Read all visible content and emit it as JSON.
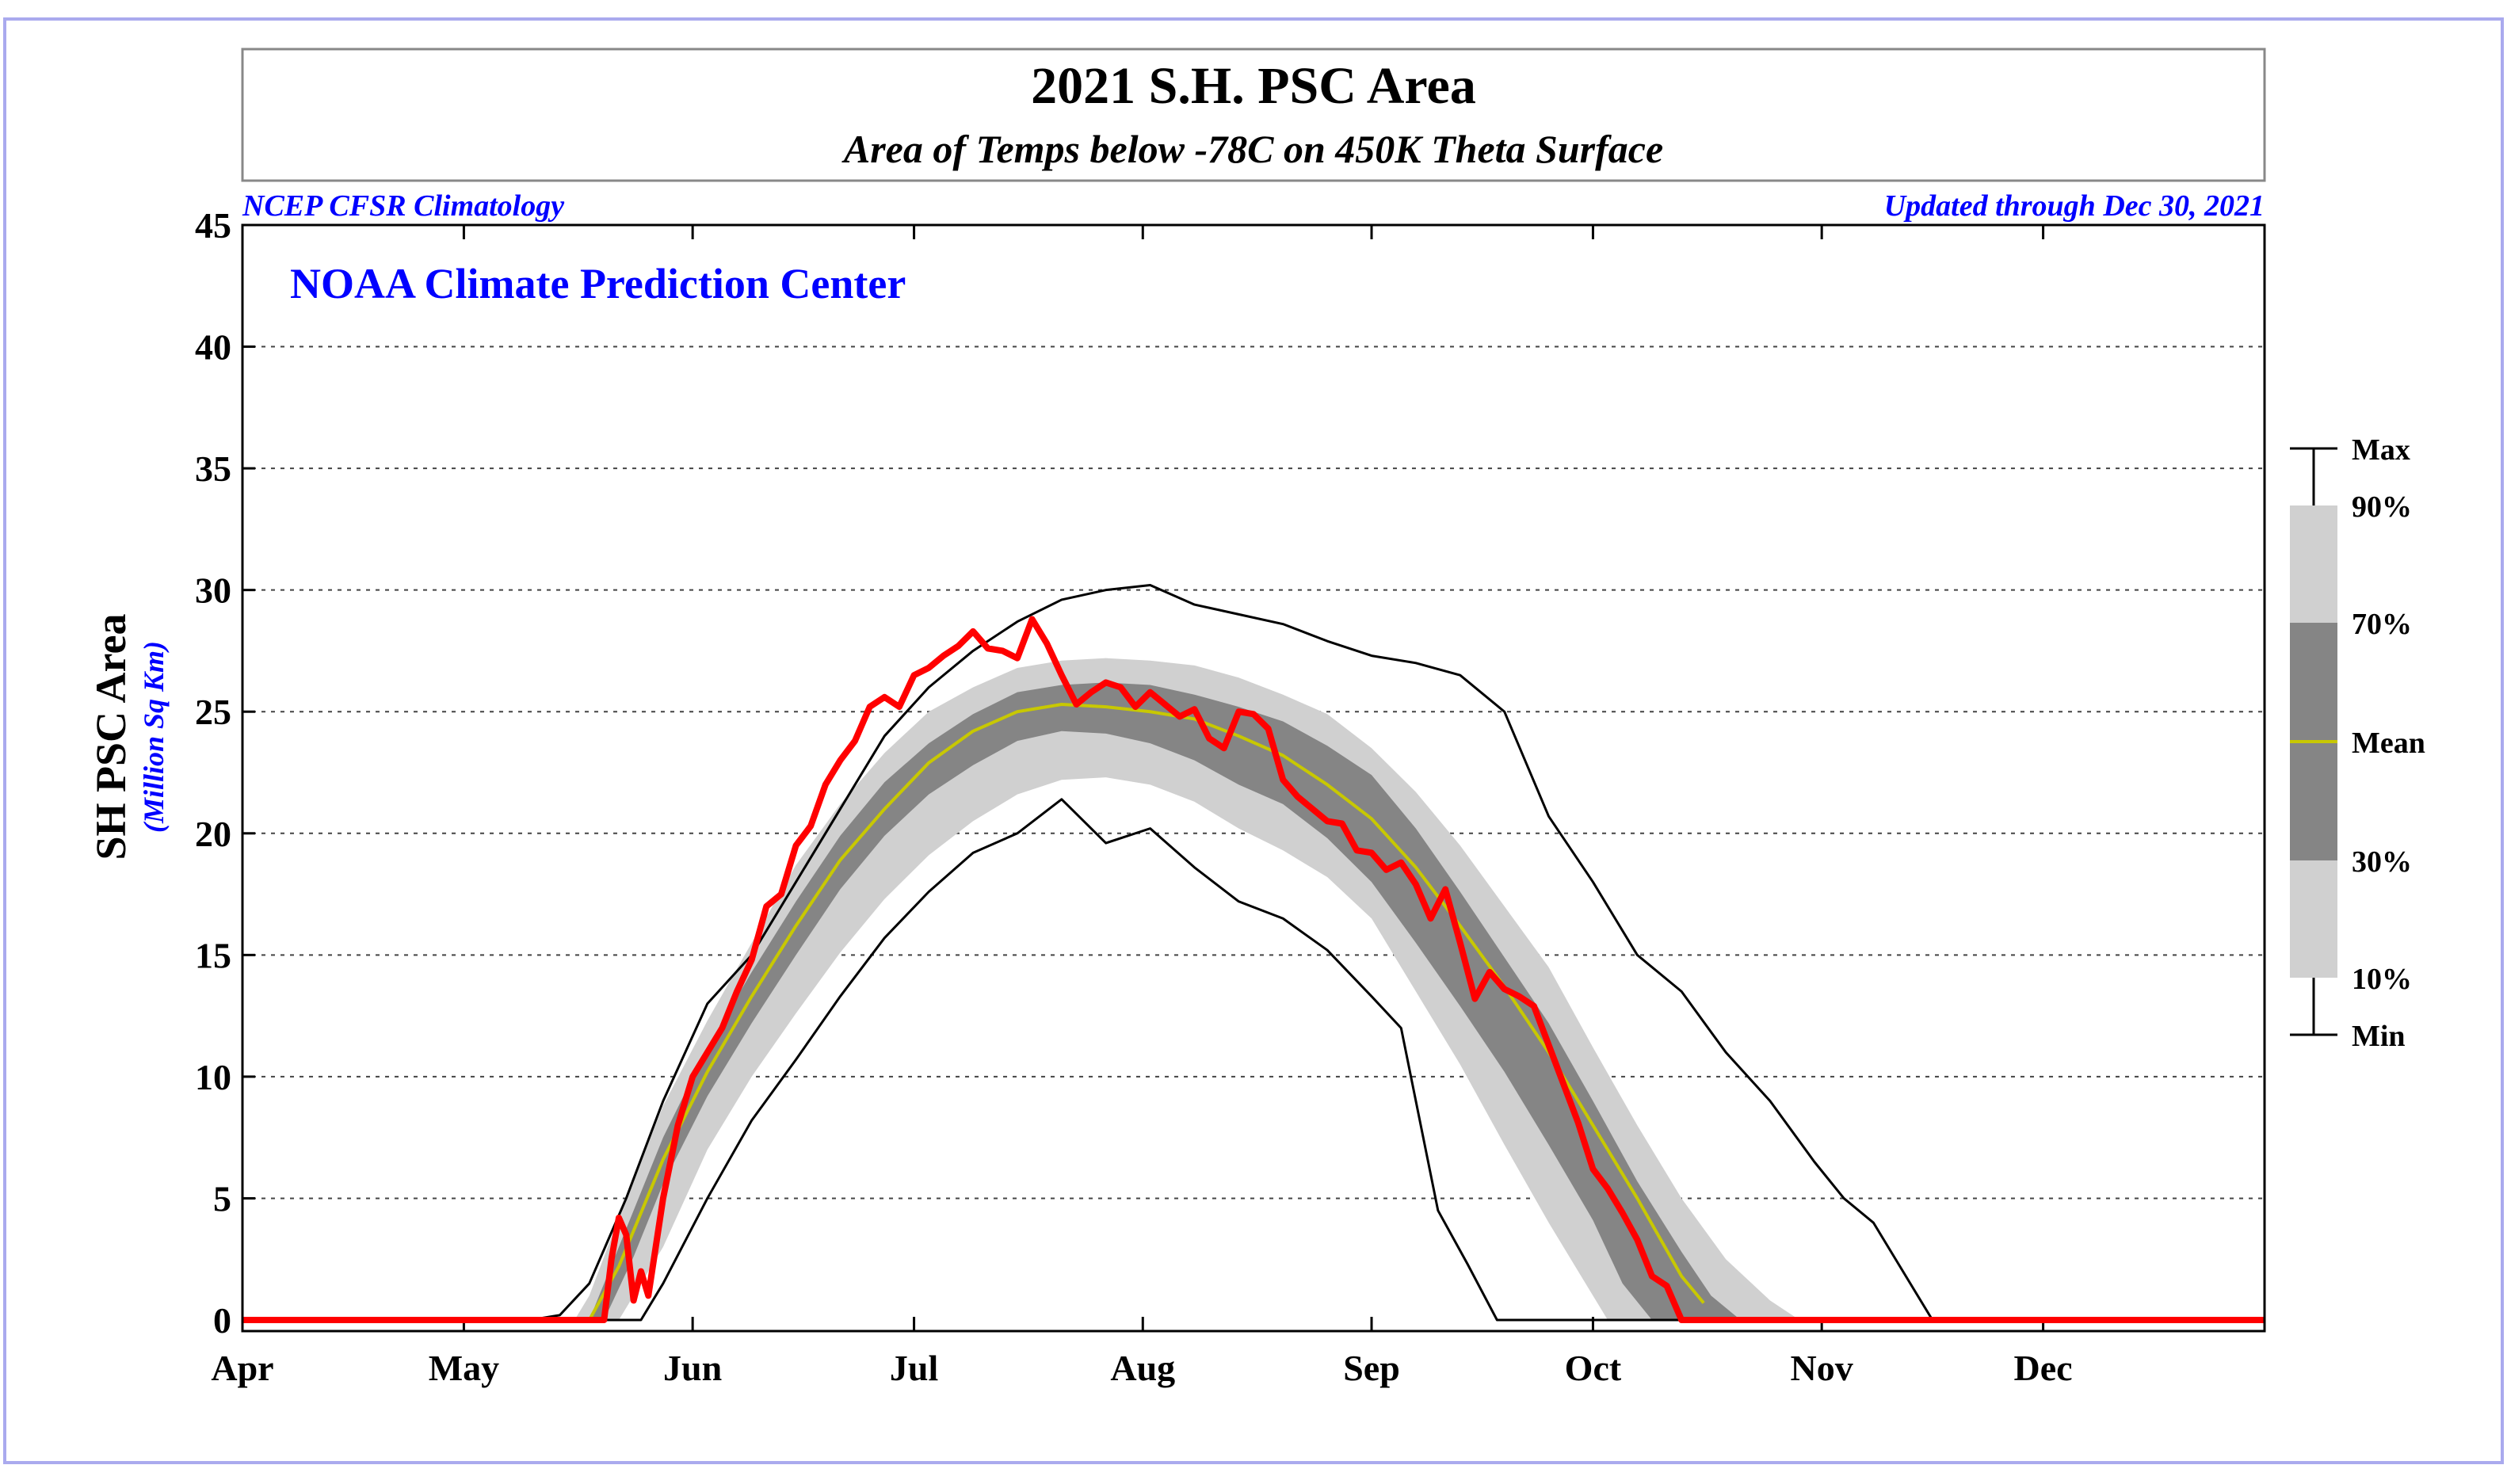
{
  "chart_data": {
    "type": "area",
    "title": "2021 S.H. PSC Area",
    "subtitle": "Area of Temps below -78C on 450K Theta Surface",
    "source_left": "NCEP CFSR Climatology",
    "source_right": "Updated through Dec 30, 2021",
    "watermark": "NOAA Climate Prediction Center",
    "ylabel": "SH PSC Area",
    "ylabel_units": "(Million Sq Km)",
    "xlabel": "",
    "ylim": [
      0,
      45
    ],
    "yticks": [
      0,
      5,
      10,
      15,
      20,
      25,
      30,
      35,
      40,
      45
    ],
    "grid": true,
    "x_unit": "day of year (Apr 1 = 1)",
    "xlim": [
      1,
      275
    ],
    "month_ticks": [
      {
        "label": "Apr",
        "day": 1
      },
      {
        "label": "May",
        "day": 31
      },
      {
        "label": "Jun",
        "day": 62
      },
      {
        "label": "Jul",
        "day": 92
      },
      {
        "label": "Aug",
        "day": 123
      },
      {
        "label": "Sep",
        "day": 154
      },
      {
        "label": "Oct",
        "day": 184
      },
      {
        "label": "Nov",
        "day": 215
      },
      {
        "label": "Dec",
        "day": 245
      }
    ],
    "legend": {
      "position": "right",
      "labels": [
        "Max",
        "90%",
        "70%",
        "Mean",
        "30%",
        "10%",
        "Min"
      ]
    },
    "colors": {
      "band_10_90": "#d0d0d0",
      "band_30_70": "#858585",
      "mean": "#c8c800",
      "current": "#ff0000",
      "envelope": "#000000",
      "header_text": "#0000ff",
      "frame": "#aaaaee"
    },
    "series": [
      {
        "name": "Max",
        "x": [
          1,
          40,
          44,
          48,
          53,
          58,
          64,
          70,
          76,
          82,
          88,
          94,
          100,
          106,
          112,
          118,
          124,
          130,
          136,
          142,
          148,
          154,
          160,
          166,
          172,
          178,
          184,
          190,
          196,
          202,
          208,
          214,
          218,
          222,
          230,
          275
        ],
        "y": [
          0,
          0,
          0.2,
          1.5,
          5,
          9,
          13,
          15,
          18,
          21,
          24,
          26,
          27.5,
          28.7,
          29.6,
          30,
          30.2,
          29.4,
          29,
          28.6,
          27.9,
          27.3,
          27,
          26.5,
          25,
          20.7,
          18,
          15,
          13.5,
          11,
          9,
          6.5,
          5,
          4,
          0,
          0
        ]
      },
      {
        "name": "90%",
        "x": [
          46,
          48,
          53,
          58,
          64,
          70,
          76,
          82,
          88,
          94,
          100,
          106,
          112,
          118,
          124,
          130,
          136,
          142,
          148,
          154,
          160,
          166,
          172,
          178,
          184,
          190,
          196,
          202,
          208,
          212
        ],
        "y": [
          0,
          1,
          5,
          8.8,
          12.3,
          15.5,
          18.7,
          21.2,
          23.3,
          25,
          26,
          26.8,
          27.1,
          27.2,
          27.1,
          26.9,
          26.4,
          25.7,
          24.9,
          23.5,
          21.7,
          19.5,
          17,
          14.5,
          11.2,
          8,
          5,
          2.5,
          0.8,
          0
        ]
      },
      {
        "name": "70%",
        "x": [
          48,
          52,
          58,
          64,
          70,
          76,
          82,
          88,
          94,
          100,
          106,
          112,
          118,
          124,
          130,
          136,
          142,
          148,
          154,
          160,
          166,
          172,
          178,
          184,
          190,
          196,
          200,
          204
        ],
        "y": [
          0,
          3,
          7.5,
          11.2,
          14.3,
          17.2,
          19.9,
          22.1,
          23.7,
          24.9,
          25.8,
          26.1,
          26.2,
          26.1,
          25.7,
          25.2,
          24.6,
          23.6,
          22.4,
          20.2,
          17.6,
          14.9,
          12.2,
          9,
          5.7,
          2.8,
          1,
          0
        ]
      },
      {
        "name": "Mean",
        "x": [
          48,
          52,
          58,
          64,
          70,
          76,
          82,
          88,
          94,
          100,
          106,
          112,
          118,
          124,
          130,
          136,
          142,
          148,
          154,
          160,
          166,
          172,
          178,
          184,
          190,
          196,
          199
        ],
        "y": [
          0,
          2.2,
          6.6,
          10.2,
          13.3,
          16.2,
          18.9,
          21,
          22.9,
          24.2,
          25,
          25.3,
          25.2,
          25,
          24.7,
          24,
          23.2,
          22,
          20.6,
          18.6,
          16.2,
          13.7,
          11,
          8,
          5,
          1.8,
          0.7
        ]
      },
      {
        "name": "30%",
        "x": [
          50,
          54,
          58,
          64,
          70,
          76,
          82,
          88,
          94,
          100,
          106,
          112,
          118,
          124,
          130,
          136,
          142,
          148,
          154,
          160,
          166,
          172,
          178,
          184,
          188,
          192
        ],
        "y": [
          0,
          2.6,
          5.6,
          9.2,
          12.2,
          15,
          17.7,
          19.9,
          21.6,
          22.8,
          23.8,
          24.2,
          24.1,
          23.7,
          23,
          22,
          21.2,
          19.8,
          18,
          15.5,
          12.9,
          10.2,
          7.2,
          4.1,
          1.5,
          0
        ]
      },
      {
        "name": "10%",
        "x": [
          52,
          58,
          64,
          70,
          76,
          82,
          88,
          94,
          100,
          106,
          112,
          118,
          124,
          130,
          136,
          142,
          148,
          154,
          160,
          166,
          172,
          178,
          182,
          186
        ],
        "y": [
          0,
          3,
          7,
          10,
          12.6,
          15.1,
          17.3,
          19.1,
          20.5,
          21.6,
          22.2,
          22.3,
          22,
          21.3,
          20.2,
          19.3,
          18.2,
          16.5,
          13.5,
          10.5,
          7.2,
          4,
          2,
          0
        ]
      },
      {
        "name": "Min",
        "x": [
          1,
          55,
          58,
          64,
          70,
          76,
          82,
          88,
          94,
          100,
          106,
          112,
          118,
          124,
          130,
          136,
          142,
          148,
          154,
          158,
          163,
          167,
          171,
          175,
          275
        ],
        "y": [
          0,
          0,
          1.5,
          5,
          8.2,
          10.7,
          13.3,
          15.7,
          17.6,
          19.2,
          20,
          21.4,
          19.6,
          20.2,
          18.6,
          17.2,
          16.5,
          15.2,
          13.3,
          12,
          4.5,
          2.3,
          0,
          0,
          0
        ]
      },
      {
        "name": "2021",
        "x": [
          1,
          50,
          51,
          52,
          53,
          54,
          55,
          56,
          58,
          60,
          62,
          64,
          66,
          68,
          70,
          72,
          74,
          76,
          78,
          80,
          82,
          84,
          86,
          88,
          90,
          92,
          94,
          96,
          98,
          100,
          102,
          104,
          106,
          108,
          110,
          112,
          114,
          116,
          118,
          120,
          122,
          124,
          126,
          128,
          130,
          132,
          134,
          136,
          138,
          140,
          142,
          144,
          146,
          148,
          150,
          152,
          154,
          156,
          158,
          160,
          162,
          164,
          166,
          168,
          170,
          172,
          174,
          176,
          178,
          180,
          182,
          184,
          186,
          188,
          190,
          192,
          194,
          196,
          198,
          200,
          202,
          204,
          206,
          208,
          210,
          212,
          214,
          216,
          218,
          275
        ],
        "y": [
          0,
          0,
          2.5,
          4.2,
          3.5,
          0.8,
          2,
          1,
          5,
          8,
          10,
          11,
          12,
          13.5,
          14.8,
          17,
          17.5,
          19.5,
          20.3,
          22,
          23,
          23.8,
          25.2,
          25.6,
          25.2,
          26.5,
          26.8,
          27.3,
          27.7,
          28.3,
          27.6,
          27.5,
          27.2,
          28.8,
          27.8,
          26.5,
          25.3,
          25.8,
          26.2,
          26,
          25.2,
          25.8,
          25.3,
          24.8,
          25.1,
          23.9,
          23.5,
          25,
          24.9,
          24.3,
          22.2,
          21.5,
          21,
          20.5,
          20.4,
          19.3,
          19.2,
          18.5,
          18.8,
          17.9,
          16.5,
          17.7,
          15.5,
          13.2,
          14.3,
          13.6,
          13.3,
          12.9,
          11.3,
          9.7,
          8.1,
          6.2,
          5.4,
          4.4,
          3.3,
          1.8,
          1.4,
          0,
          0,
          0,
          0,
          0,
          0,
          0,
          0,
          0,
          0,
          0,
          0,
          0
        ]
      }
    ]
  }
}
